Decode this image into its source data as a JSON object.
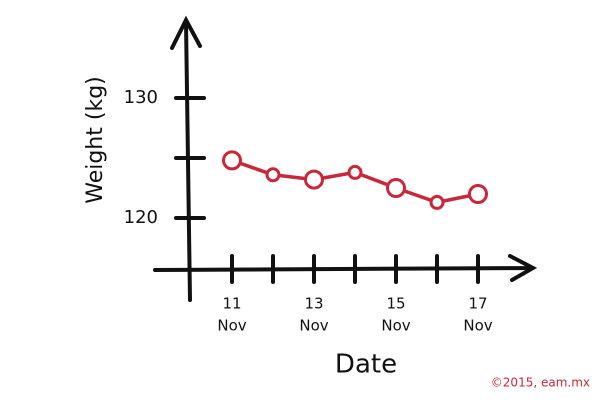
{
  "chart_data": {
    "type": "line",
    "x_label": "Date",
    "y_label": "Weight (kg)",
    "credit": "©2015, eam.mx",
    "categories": [
      "11",
      null,
      "13",
      null,
      "15",
      null,
      "17"
    ],
    "month_label": "Nov",
    "series": [
      {
        "name": "Weight",
        "color": "#c8283a",
        "values": [
          124.8,
          123.6,
          123.2,
          123.8,
          122.5,
          121.3,
          122.0
        ]
      }
    ],
    "ylim": [
      115.5,
      136.5
    ],
    "yticks": [
      120,
      130
    ],
    "minor_yticks": [
      125
    ]
  }
}
